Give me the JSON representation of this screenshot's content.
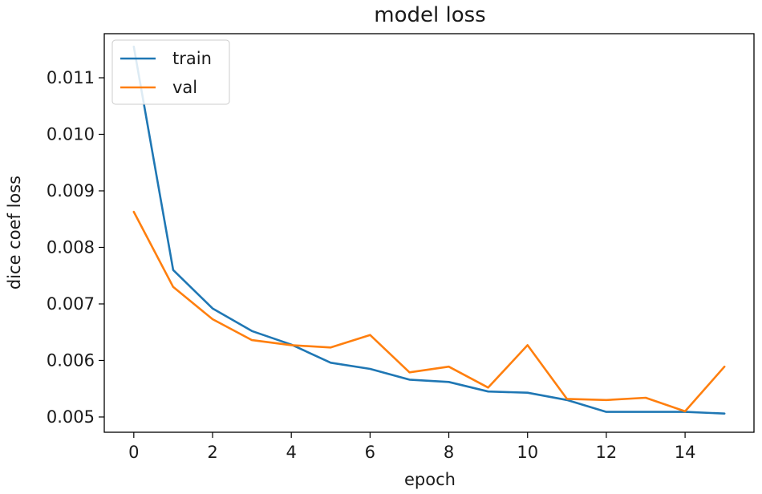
{
  "chart_data": {
    "type": "line",
    "title": "model loss",
    "xlabel": "epoch",
    "ylabel": "dice coef loss",
    "xlim": [
      -0.75,
      15.75
    ],
    "ylim": [
      0.00473,
      0.01178
    ],
    "xticks": [
      0,
      2,
      4,
      6,
      8,
      10,
      12,
      14
    ],
    "xtick_labels": [
      "0",
      "2",
      "4",
      "6",
      "8",
      "10",
      "12",
      "14"
    ],
    "yticks": [
      0.005,
      0.006,
      0.007,
      0.008,
      0.009,
      0.01,
      0.011
    ],
    "ytick_labels": [
      "0.005",
      "0.006",
      "0.007",
      "0.008",
      "0.009",
      "0.010",
      "0.011"
    ],
    "grid": false,
    "legend_position": "top-left",
    "x": [
      0,
      1,
      2,
      3,
      4,
      5,
      6,
      7,
      8,
      9,
      10,
      11,
      12,
      13,
      14,
      15
    ],
    "series": [
      {
        "name": "train",
        "color": "#1f77b4",
        "values": [
          0.01155,
          0.0076,
          0.00692,
          0.00652,
          0.00628,
          0.00596,
          0.00585,
          0.00566,
          0.00562,
          0.00545,
          0.00543,
          0.0053,
          0.00509,
          0.00509,
          0.00509,
          0.00506
        ]
      },
      {
        "name": "val",
        "color": "#ff7f0e",
        "values": [
          0.00863,
          0.0073,
          0.00673,
          0.00636,
          0.00627,
          0.00623,
          0.00645,
          0.00579,
          0.00589,
          0.00552,
          0.00627,
          0.00532,
          0.0053,
          0.00534,
          0.0051,
          0.00589
        ]
      }
    ]
  }
}
